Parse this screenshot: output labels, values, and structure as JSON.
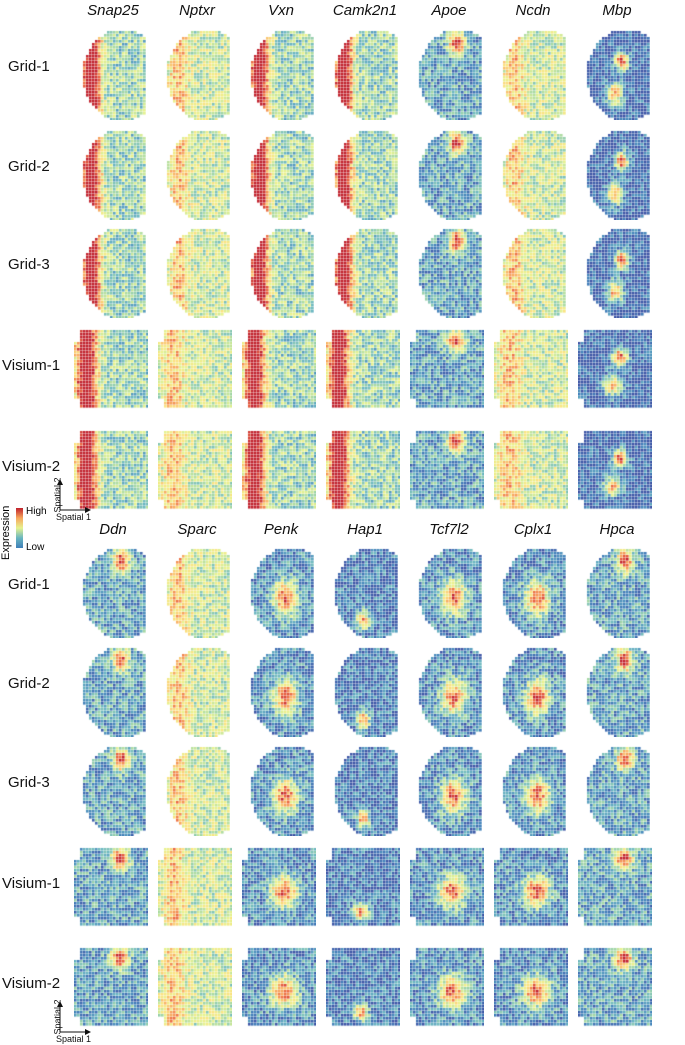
{
  "colors": {
    "palette": [
      "#3b53a4",
      "#3f7fb9",
      "#69b6c0",
      "#a8d9a1",
      "#e6f28e",
      "#fbe27f",
      "#f7a65c",
      "#e9603b",
      "#c0202c"
    ],
    "background": "#ffffff"
  },
  "panels": [
    {
      "genes": [
        "Snap25",
        "Nptxr",
        "Vxn",
        "Camk2n1",
        "Apoe",
        "Ncdn",
        "Mbp"
      ],
      "rows": [
        "Grid-1",
        "Grid-2",
        "Grid-3",
        "Visium-1",
        "Visium-2"
      ]
    },
    {
      "genes": [
        "Ddn",
        "Sparc",
        "Penk",
        "Hap1",
        "Tcf7l2",
        "Cplx1",
        "Hpca"
      ],
      "rows": [
        "Grid-1",
        "Grid-2",
        "Grid-3",
        "Visium-1",
        "Visium-2"
      ]
    }
  ],
  "legend": {
    "title": "Expression",
    "high": "High",
    "low": "Low"
  },
  "axes": {
    "spatial1": "Spatial 1",
    "spatial2": "Spatial 2"
  }
}
